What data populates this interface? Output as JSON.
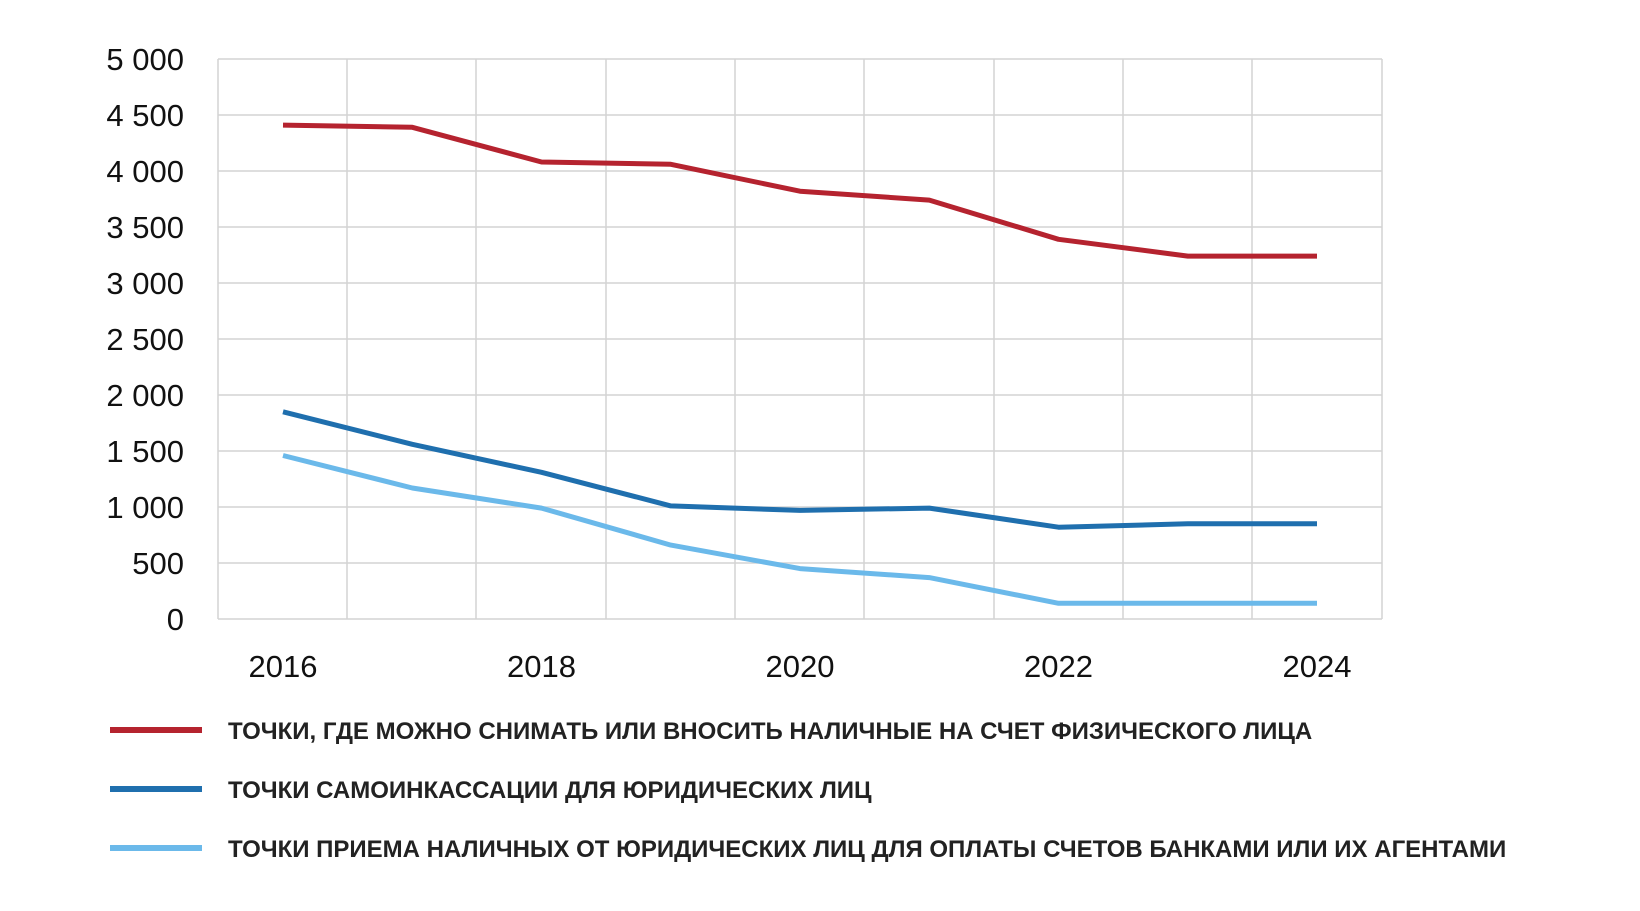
{
  "chart_data": {
    "type": "line",
    "x": [
      2016,
      2017,
      2018,
      2019,
      2020,
      2021,
      2022,
      2023,
      2024
    ],
    "x_tick_labels": [
      "2016",
      "2018",
      "2020",
      "2022",
      "2024"
    ],
    "y_tick_labels": [
      "0",
      "500",
      "1 000",
      "1 500",
      "2 000",
      "2 500",
      "3 000",
      "3 500",
      "4 000",
      "4 500",
      "5 000"
    ],
    "ylim": [
      0,
      5000
    ],
    "grid": true,
    "legend_position": "bottom",
    "series": [
      {
        "name": "ТОЧКИ, ГДЕ МОЖНО СНИМАТЬ ИЛИ ВНОСИТЬ НАЛИЧНЫЕ НА СЧЕТ ФИЗИЧЕСКОГО ЛИЦА",
        "color": "#b5232f",
        "values": [
          4410,
          4390,
          4080,
          4060,
          3820,
          3740,
          3390,
          3240,
          3240
        ]
      },
      {
        "name": "ТОЧКИ САМОИНКАССАЦИИ ДЛЯ ЮРИДИЧЕСКИХ ЛИЦ",
        "color": "#1f6fae",
        "values": [
          1850,
          1560,
          1310,
          1010,
          970,
          990,
          820,
          850,
          850
        ]
      },
      {
        "name": "ТОЧКИ ПРИЕМА НАЛИЧНЫХ ОТ ЮРИДИЧЕСКИХ ЛИЦ ДЛЯ ОПЛАТЫ СЧЕТОВ БАНКАМИ ИЛИ ИХ АГЕНТАМИ",
        "color": "#6bb9ea",
        "values": [
          1460,
          1170,
          990,
          660,
          450,
          370,
          140,
          140,
          140
        ]
      }
    ]
  }
}
